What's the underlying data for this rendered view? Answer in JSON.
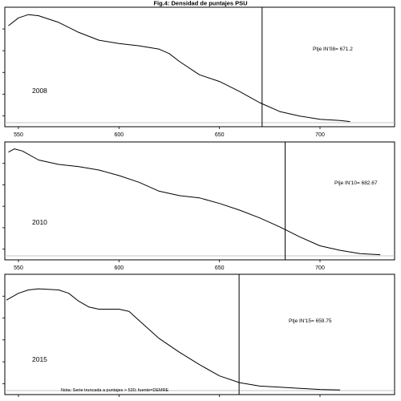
{
  "title": "Fig.4: Densidad de puntajes PSU",
  "note": "Nota: Serie truncada a puntajes > 530; fuente=DEMRE",
  "chart_data": [
    {
      "type": "line",
      "series_label": "2008",
      "annotation": "Ptje IN'08= 671.2",
      "cutoff": 671.2,
      "xlim": [
        544,
        736
      ],
      "ylim": [
        0,
        1
      ],
      "x_ticks": [
        550,
        600,
        650,
        700
      ],
      "x_tick_labels": [
        "550",
        "600",
        "650",
        "700"
      ],
      "points": [
        [
          545,
          0.87
        ],
        [
          550,
          0.94
        ],
        [
          555,
          0.97
        ],
        [
          560,
          0.96
        ],
        [
          570,
          0.9
        ],
        [
          580,
          0.81
        ],
        [
          590,
          0.74
        ],
        [
          600,
          0.71
        ],
        [
          610,
          0.69
        ],
        [
          620,
          0.66
        ],
        [
          625,
          0.62
        ],
        [
          630,
          0.55
        ],
        [
          640,
          0.43
        ],
        [
          650,
          0.37
        ],
        [
          660,
          0.28
        ],
        [
          670,
          0.18
        ],
        [
          680,
          0.1
        ],
        [
          690,
          0.06
        ],
        [
          700,
          0.03
        ],
        [
          710,
          0.02
        ],
        [
          715,
          0.01
        ]
      ]
    },
    {
      "type": "line",
      "series_label": "2010",
      "annotation": "Ptje IN'10= 682.67",
      "cutoff": 682.67,
      "xlim": [
        544,
        736
      ],
      "ylim": [
        0,
        1
      ],
      "x_ticks": [
        550,
        600,
        650,
        700
      ],
      "x_tick_labels": [
        "550",
        "600",
        "650",
        "700"
      ],
      "points": [
        [
          545,
          0.93
        ],
        [
          548,
          0.96
        ],
        [
          552,
          0.94
        ],
        [
          560,
          0.86
        ],
        [
          570,
          0.82
        ],
        [
          580,
          0.8
        ],
        [
          590,
          0.77
        ],
        [
          600,
          0.72
        ],
        [
          610,
          0.66
        ],
        [
          620,
          0.58
        ],
        [
          630,
          0.54
        ],
        [
          640,
          0.52
        ],
        [
          650,
          0.47
        ],
        [
          660,
          0.41
        ],
        [
          670,
          0.34
        ],
        [
          680,
          0.26
        ],
        [
          690,
          0.17
        ],
        [
          700,
          0.09
        ],
        [
          710,
          0.05
        ],
        [
          720,
          0.02
        ],
        [
          730,
          0.01
        ]
      ]
    },
    {
      "type": "line",
      "series_label": "2015",
      "annotation": "Ptje IN'15= 659.75",
      "cutoff": 659.75,
      "xlim": [
        544,
        736
      ],
      "ylim": [
        0,
        1
      ],
      "x_ticks": [],
      "x_tick_labels": [],
      "points": [
        [
          544,
          0.8
        ],
        [
          550,
          0.86
        ],
        [
          555,
          0.89
        ],
        [
          560,
          0.9
        ],
        [
          570,
          0.89
        ],
        [
          575,
          0.86
        ],
        [
          580,
          0.79
        ],
        [
          585,
          0.74
        ],
        [
          590,
          0.72
        ],
        [
          600,
          0.72
        ],
        [
          605,
          0.7
        ],
        [
          610,
          0.62
        ],
        [
          620,
          0.46
        ],
        [
          630,
          0.34
        ],
        [
          640,
          0.23
        ],
        [
          650,
          0.13
        ],
        [
          660,
          0.07
        ],
        [
          670,
          0.04
        ],
        [
          680,
          0.03
        ],
        [
          690,
          0.02
        ],
        [
          700,
          0.01
        ],
        [
          710,
          0.005
        ]
      ]
    }
  ]
}
